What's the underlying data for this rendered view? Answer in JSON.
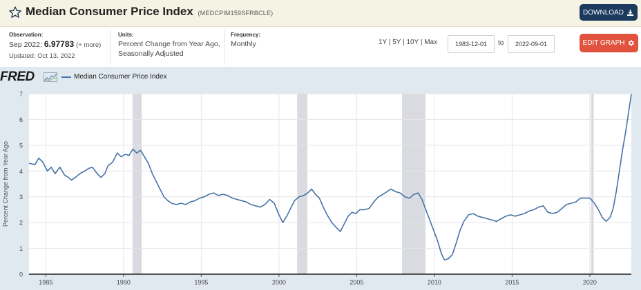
{
  "header": {
    "title": "Median Consumer Price Index",
    "series_code": "(MEDCPIM159SFRBCLE)",
    "download_label": "DOWNLOAD",
    "star_icon": "star-outline-icon",
    "download_icon": "download-icon"
  },
  "observation": {
    "label": "Observation:",
    "period": "Sep 2022:",
    "value": "6.97783",
    "more": "(+ more)",
    "updated": "Updated: Oct 13, 2022"
  },
  "units": {
    "label": "Units:",
    "line1": "Percent Change from Year Ago,",
    "line2": "Seasonally Adjusted"
  },
  "frequency": {
    "label": "Frequency:",
    "value": "Monthly"
  },
  "ranges": [
    "1Y",
    "5Y",
    "10Y",
    "Max"
  ],
  "date_range": {
    "start": "1983-12-01",
    "to_label": "to",
    "end": "2022-09-01"
  },
  "edit_label": "EDIT GRAPH",
  "edit_icon": "gear-icon",
  "logo_text": "FRED",
  "colors": {
    "line": "#4572a7",
    "recession": "#d9dbe0",
    "plot_bg": "#ffffff",
    "chart_bg": "#e1e9f0",
    "download_btn": "#1b3a5e",
    "edit_btn": "#e1533e"
  },
  "chart_data": {
    "type": "line",
    "ylabel": "Percent Change from Year Ago",
    "ylim": [
      0,
      7
    ],
    "yticks": [
      0,
      1,
      2,
      3,
      4,
      5,
      6,
      7
    ],
    "xlim": [
      1983.92,
      2022.67
    ],
    "xticks": [
      1985,
      1990,
      1995,
      2000,
      2005,
      2010,
      2015,
      2020
    ],
    "grid": true,
    "legend": "top-left",
    "recessions": [
      [
        1990.58,
        1991.17
      ],
      [
        2001.17,
        2001.83
      ],
      [
        2007.92,
        2009.42
      ],
      [
        2020.08,
        2020.25
      ]
    ],
    "series": [
      {
        "name": "Median Consumer Price Index",
        "points": [
          [
            1983.92,
            4.3
          ],
          [
            1984.3,
            4.25
          ],
          [
            1984.55,
            4.5
          ],
          [
            1984.8,
            4.35
          ],
          [
            1985.1,
            4.0
          ],
          [
            1985.35,
            4.15
          ],
          [
            1985.6,
            3.9
          ],
          [
            1985.9,
            4.15
          ],
          [
            1986.2,
            3.85
          ],
          [
            1986.45,
            3.75
          ],
          [
            1986.65,
            3.65
          ],
          [
            1986.9,
            3.75
          ],
          [
            1987.2,
            3.9
          ],
          [
            1987.5,
            4.0
          ],
          [
            1987.75,
            4.1
          ],
          [
            1988.0,
            4.15
          ],
          [
            1988.3,
            3.9
          ],
          [
            1988.55,
            3.75
          ],
          [
            1988.8,
            3.9
          ],
          [
            1989.0,
            4.2
          ],
          [
            1989.3,
            4.35
          ],
          [
            1989.6,
            4.7
          ],
          [
            1989.85,
            4.55
          ],
          [
            1990.1,
            4.65
          ],
          [
            1990.35,
            4.6
          ],
          [
            1990.6,
            4.85
          ],
          [
            1990.85,
            4.7
          ],
          [
            1991.1,
            4.8
          ],
          [
            1991.35,
            4.55
          ],
          [
            1991.6,
            4.3
          ],
          [
            1991.85,
            3.9
          ],
          [
            1992.1,
            3.6
          ],
          [
            1992.35,
            3.3
          ],
          [
            1992.6,
            3.0
          ],
          [
            1992.85,
            2.85
          ],
          [
            1993.1,
            2.75
          ],
          [
            1993.4,
            2.7
          ],
          [
            1993.7,
            2.75
          ],
          [
            1994.0,
            2.7
          ],
          [
            1994.3,
            2.8
          ],
          [
            1994.6,
            2.85
          ],
          [
            1994.9,
            2.95
          ],
          [
            1995.2,
            3.0
          ],
          [
            1995.5,
            3.1
          ],
          [
            1995.8,
            3.15
          ],
          [
            1996.1,
            3.05
          ],
          [
            1996.4,
            3.1
          ],
          [
            1996.7,
            3.05
          ],
          [
            1997.0,
            2.95
          ],
          [
            1997.3,
            2.9
          ],
          [
            1997.6,
            2.85
          ],
          [
            1997.9,
            2.8
          ],
          [
            1998.2,
            2.7
          ],
          [
            1998.5,
            2.65
          ],
          [
            1998.8,
            2.6
          ],
          [
            1999.1,
            2.7
          ],
          [
            1999.4,
            2.9
          ],
          [
            1999.7,
            2.75
          ],
          [
            2000.0,
            2.3
          ],
          [
            2000.25,
            2.0
          ],
          [
            2000.5,
            2.25
          ],
          [
            2000.75,
            2.55
          ],
          [
            2001.0,
            2.85
          ],
          [
            2001.3,
            3.0
          ],
          [
            2001.6,
            3.05
          ],
          [
            2001.85,
            3.15
          ],
          [
            2002.1,
            3.3
          ],
          [
            2002.35,
            3.1
          ],
          [
            2002.6,
            2.95
          ],
          [
            2002.85,
            2.6
          ],
          [
            2003.1,
            2.3
          ],
          [
            2003.4,
            2.0
          ],
          [
            2003.7,
            1.8
          ],
          [
            2003.95,
            1.65
          ],
          [
            2004.2,
            1.95
          ],
          [
            2004.45,
            2.25
          ],
          [
            2004.7,
            2.4
          ],
          [
            2004.95,
            2.35
          ],
          [
            2005.2,
            2.5
          ],
          [
            2005.5,
            2.5
          ],
          [
            2005.8,
            2.55
          ],
          [
            2006.1,
            2.8
          ],
          [
            2006.4,
            3.0
          ],
          [
            2006.7,
            3.1
          ],
          [
            2006.95,
            3.2
          ],
          [
            2007.2,
            3.3
          ],
          [
            2007.5,
            3.2
          ],
          [
            2007.8,
            3.15
          ],
          [
            2008.1,
            3.0
          ],
          [
            2008.4,
            2.95
          ],
          [
            2008.7,
            3.1
          ],
          [
            2008.95,
            3.15
          ],
          [
            2009.2,
            2.9
          ],
          [
            2009.45,
            2.5
          ],
          [
            2009.7,
            2.1
          ],
          [
            2009.95,
            1.7
          ],
          [
            2010.2,
            1.3
          ],
          [
            2010.45,
            0.8
          ],
          [
            2010.65,
            0.55
          ],
          [
            2010.9,
            0.6
          ],
          [
            2011.15,
            0.75
          ],
          [
            2011.4,
            1.2
          ],
          [
            2011.65,
            1.7
          ],
          [
            2011.9,
            2.05
          ],
          [
            2012.2,
            2.3
          ],
          [
            2012.5,
            2.35
          ],
          [
            2012.8,
            2.25
          ],
          [
            2013.1,
            2.2
          ],
          [
            2013.4,
            2.15
          ],
          [
            2013.7,
            2.1
          ],
          [
            2014.0,
            2.05
          ],
          [
            2014.3,
            2.15
          ],
          [
            2014.6,
            2.25
          ],
          [
            2014.9,
            2.3
          ],
          [
            2015.2,
            2.25
          ],
          [
            2015.5,
            2.3
          ],
          [
            2015.8,
            2.35
          ],
          [
            2016.1,
            2.45
          ],
          [
            2016.4,
            2.5
          ],
          [
            2016.7,
            2.6
          ],
          [
            2017.0,
            2.65
          ],
          [
            2017.3,
            2.4
          ],
          [
            2017.6,
            2.35
          ],
          [
            2017.9,
            2.4
          ],
          [
            2018.2,
            2.55
          ],
          [
            2018.5,
            2.7
          ],
          [
            2018.8,
            2.75
          ],
          [
            2019.1,
            2.8
          ],
          [
            2019.4,
            2.95
          ],
          [
            2019.7,
            2.95
          ],
          [
            2020.0,
            2.95
          ],
          [
            2020.3,
            2.75
          ],
          [
            2020.55,
            2.5
          ],
          [
            2020.8,
            2.2
          ],
          [
            2021.05,
            2.05
          ],
          [
            2021.3,
            2.2
          ],
          [
            2021.5,
            2.55
          ],
          [
            2021.7,
            3.2
          ],
          [
            2021.9,
            4.0
          ],
          [
            2022.1,
            4.8
          ],
          [
            2022.3,
            5.5
          ],
          [
            2022.5,
            6.3
          ],
          [
            2022.67,
            6.98
          ]
        ]
      }
    ]
  }
}
